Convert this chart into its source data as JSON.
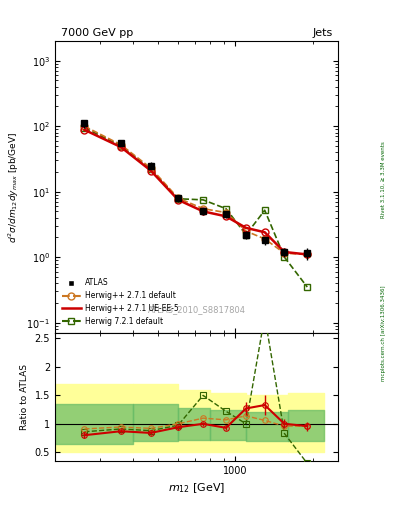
{
  "title_left": "7000 GeV pp",
  "title_right": "Jets",
  "watermark": "ATLAS_2010_S8817804",
  "right_label": "mcplots.cern.ch [arXiv:1306.3436]",
  "right_label2": "Rivet 3.1.10, ≥ 3.3M events",
  "xlabel": "m_{12} [GeV]",
  "ylabel_main": "d²σ/dm₁₂dyₘₐˣ [pb/GeV]",
  "ylabel_ratio": "Ratio to ATLAS",
  "xlim": [
    200,
    2200
  ],
  "ylim_main": [
    0.07,
    2000
  ],
  "ylim_ratio": [
    0.35,
    2.6
  ],
  "atlas_x": [
    260,
    360,
    470,
    600,
    750,
    920,
    1100,
    1300,
    1550,
    1900
  ],
  "atlas_y": [
    110,
    55,
    25,
    8.0,
    5.0,
    4.5,
    2.2,
    1.8,
    1.2,
    1.15
  ],
  "atlas_yerr": [
    15,
    5,
    3,
    1.0,
    0.6,
    0.5,
    0.3,
    0.25,
    0.2,
    0.25
  ],
  "hw271_default_x": [
    260,
    360,
    470,
    600,
    750,
    920,
    1100,
    1300,
    1550,
    1900
  ],
  "hw271_default_y": [
    100,
    52,
    23,
    8.0,
    5.5,
    4.8,
    2.5,
    1.9,
    1.15,
    1.1
  ],
  "hw271_uee5_x": [
    260,
    360,
    470,
    600,
    750,
    920,
    1100,
    1300,
    1550,
    1900
  ],
  "hw271_uee5_y": [
    88,
    48,
    21,
    7.5,
    5.0,
    4.2,
    2.8,
    2.4,
    1.2,
    1.1
  ],
  "hw721_default_x": [
    260,
    360,
    470,
    600,
    750,
    920,
    1100,
    1300,
    1550,
    1900
  ],
  "hw721_default_y": [
    95,
    50,
    22,
    7.8,
    7.5,
    5.5,
    2.2,
    5.2,
    1.0,
    0.35
  ],
  "ratio_hw271_default": [
    0.91,
    0.945,
    0.92,
    1.0,
    1.1,
    1.07,
    1.14,
    1.06,
    0.96,
    0.96
  ],
  "ratio_hw271_uee5": [
    0.8,
    0.87,
    0.84,
    0.94,
    1.0,
    0.93,
    1.27,
    1.33,
    1.0,
    0.96
  ],
  "ratio_hw271_uee5_err": [
    0.05,
    0.04,
    0.04,
    0.04,
    0.04,
    0.04,
    0.12,
    0.18,
    0.08,
    0.08
  ],
  "ratio_hw721_default": [
    0.86,
    0.91,
    0.88,
    0.975,
    1.5,
    1.22,
    1.0,
    2.89,
    0.83,
    0.305
  ],
  "ratio_atlas_x": [
    260,
    360,
    470,
    600,
    750,
    920,
    1100,
    1300,
    1550,
    1900
  ],
  "band_yellow_x": [
    200,
    400,
    600,
    800,
    1100,
    1600,
    2200
  ],
  "band_yellow_lo": [
    0.5,
    0.5,
    0.5,
    0.5,
    0.5,
    0.5,
    0.5
  ],
  "band_yellow_hi": [
    1.7,
    1.7,
    1.6,
    1.55,
    1.5,
    1.55,
    1.5
  ],
  "band_green_x": [
    200,
    400,
    600,
    800,
    1100,
    1600,
    2200
  ],
  "band_green_lo": [
    0.65,
    0.7,
    0.72,
    0.72,
    0.7,
    0.7,
    0.7
  ],
  "band_green_hi": [
    1.35,
    1.35,
    1.28,
    1.25,
    1.2,
    1.25,
    1.2
  ],
  "color_atlas": "#000000",
  "color_hw271_default": "#cc7722",
  "color_hw271_uee5": "#cc0000",
  "color_hw721_default": "#336600"
}
